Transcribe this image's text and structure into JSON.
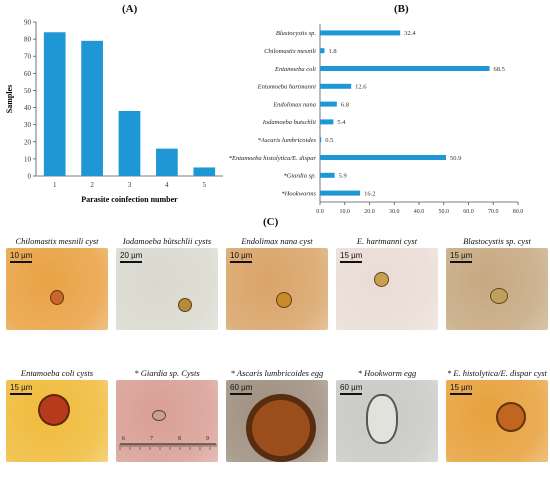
{
  "panels": {
    "a": "(A)",
    "b": "(B)",
    "c": "(C)"
  },
  "colors": {
    "bar": "#1f97d4",
    "axis": "#555555"
  },
  "chart_data": [
    {
      "type": "bar",
      "orientation": "vertical",
      "categories": [
        "1",
        "2",
        "3",
        "4",
        "5"
      ],
      "values": [
        84,
        79,
        38,
        16,
        5
      ],
      "title": "",
      "xlabel": "Parasite coinfection number",
      "ylabel": "Samples",
      "yticks": [
        0,
        10,
        20,
        30,
        40,
        50,
        60,
        70,
        80,
        90
      ],
      "ylim": [
        0,
        90
      ],
      "grid": false
    },
    {
      "type": "bar",
      "orientation": "horizontal",
      "categories": [
        "Blastocystis sp.",
        "Chilomastix mesnili",
        "Entamoeba coli",
        "Entamoeba hartmanni",
        "Endolimax nana",
        "Iodamoeba butschlii",
        "*Ascaris lumbricoides",
        "*Entamoeba histolytica/E. dispar",
        "*Giardia sp.",
        "*Hookworms"
      ],
      "values": [
        32.4,
        1.8,
        68.5,
        12.6,
        6.8,
        5.4,
        0.5,
        50.9,
        5.9,
        16.2
      ],
      "data_labels": [
        "32.4",
        "1.8",
        "68.5",
        "12.6",
        "6.8",
        "5.4",
        "0.5",
        "50.9",
        "5.9",
        "16.2"
      ],
      "title": "",
      "xlabel": "% of positive samples",
      "ylabel": "",
      "xticks": [
        "0.0",
        "10.0",
        "20.0",
        "30.0",
        "40.0",
        "50.0",
        "60.0",
        "70.0",
        "80.0"
      ],
      "xlim": [
        0,
        80
      ],
      "grid": false
    }
  ],
  "micrographs": [
    {
      "title": "Chilomastix mesnili cyst",
      "scale": "10 µm",
      "bg": "#e9a244",
      "cell": "#c9672a"
    },
    {
      "title": "Iodamoeba bütschlii cysts",
      "scale": "20 µm",
      "bg": "#d9d9cf",
      "cell": "#b58c3a"
    },
    {
      "title": "Endolimax nana cyst",
      "scale": "10 µm",
      "bg": "#d9a468",
      "cell": "#c88a2a"
    },
    {
      "title": "E. hartmanni cyst",
      "scale": "15 µm",
      "bg": "#eadcd5",
      "cell": "#c9a050"
    },
    {
      "title": "Blastocystis sp. cyst",
      "scale": "15 µm",
      "bg": "#c6a982",
      "cell": "#bda05a"
    },
    {
      "title": "Entamoeba coli cysts",
      "scale": "15 µm",
      "bg": "#f0bb3a",
      "cell": "#b63b1c"
    },
    {
      "title": "* Giardia sp. Cysts",
      "scale": "",
      "bg": "#d89f95",
      "cell": "#c8a28a"
    },
    {
      "title": "* Ascaris lumbricoides egg",
      "scale": "60 µm",
      "bg": "#9f8f80",
      "cell": "#9a4e1c"
    },
    {
      "title": "* Hookworm egg",
      "scale": "60 µm",
      "bg": "#c9c9c5",
      "cell": "#e2e2dc"
    },
    {
      "title": "* E. histolytica/E. dispar cyst",
      "scale": "15 µm",
      "bg": "#e7a13c",
      "cell": "#c0661e"
    }
  ],
  "ruler_labels": [
    "6",
    "7",
    "8",
    "9"
  ]
}
